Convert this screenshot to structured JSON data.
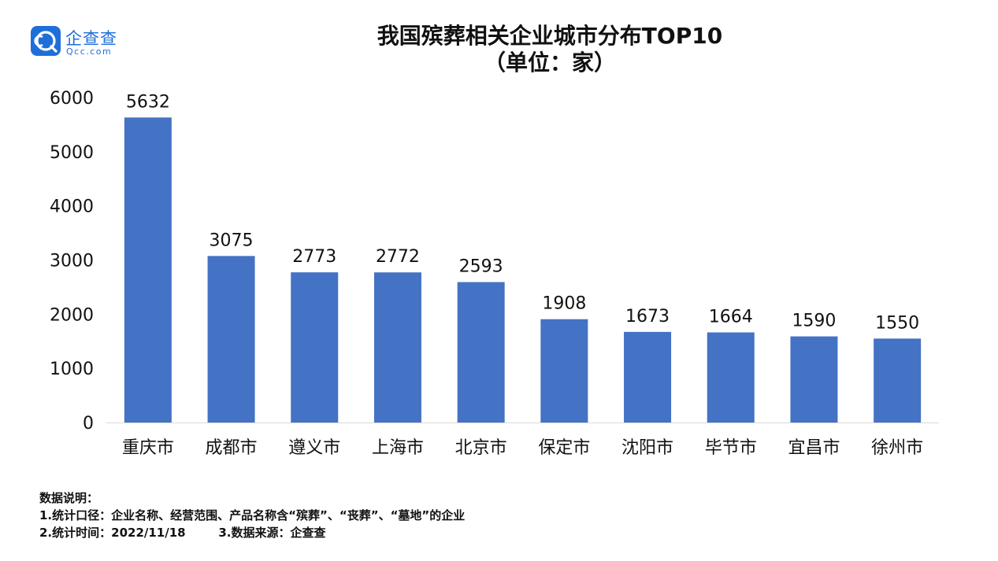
{
  "logo": {
    "name_cn": "企查查",
    "name_en": "Qcc.com"
  },
  "title": {
    "line1": "我国殡葬相关企业城市分布TOP10",
    "line2": "（单位：家）"
  },
  "notes": {
    "heading": "数据说明：",
    "line1": "1.统计口径：企业名称、经营范围、产品名称含“殡葬”、“丧葬”、“墓地”的企业",
    "line2": "2.统计时间：2022/11/18        3.数据来源：企查查"
  },
  "colors": {
    "bar": "#4472C4",
    "brand": "#1e6fd9"
  },
  "chart_data": {
    "type": "bar",
    "title": "我国殡葬相关企业城市分布TOP10（单位：家）",
    "categories": [
      "重庆市",
      "成都市",
      "遵义市",
      "上海市",
      "北京市",
      "保定市",
      "沈阳市",
      "毕节市",
      "宜昌市",
      "徐州市"
    ],
    "values": [
      5632,
      3075,
      2773,
      2772,
      2593,
      1908,
      1673,
      1664,
      1590,
      1550
    ],
    "yticks": [
      0,
      1000,
      2000,
      3000,
      4000,
      5000,
      6000
    ],
    "ylim": [
      0,
      6000
    ],
    "grid": false,
    "legend": "none",
    "data_labels": true
  }
}
